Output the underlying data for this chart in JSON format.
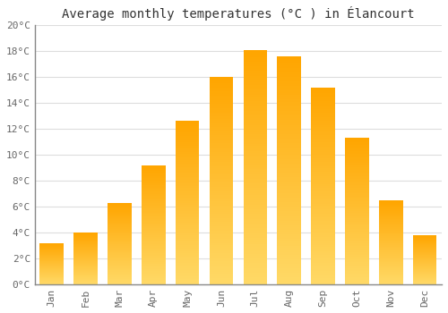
{
  "title": "Average monthly temperatures (°C ) in Élancourt",
  "months": [
    "Jan",
    "Feb",
    "Mar",
    "Apr",
    "May",
    "Jun",
    "Jul",
    "Aug",
    "Sep",
    "Oct",
    "Nov",
    "Dec"
  ],
  "values": [
    3.2,
    4.0,
    6.3,
    9.2,
    12.6,
    16.0,
    18.1,
    17.6,
    15.2,
    11.3,
    6.5,
    3.8
  ],
  "bar_color_bottom": "#FFD966",
  "bar_color_top": "#FFA500",
  "background_color": "#FFFFFF",
  "grid_color": "#DDDDDD",
  "ylim": [
    0,
    20
  ],
  "yticks": [
    0,
    2,
    4,
    6,
    8,
    10,
    12,
    14,
    16,
    18,
    20
  ],
  "ytick_labels": [
    "0°C",
    "2°C",
    "4°C",
    "6°C",
    "8°C",
    "10°C",
    "12°C",
    "14°C",
    "16°C",
    "18°C",
    "20°C"
  ],
  "title_fontsize": 10,
  "tick_fontsize": 8,
  "bar_width": 0.7
}
